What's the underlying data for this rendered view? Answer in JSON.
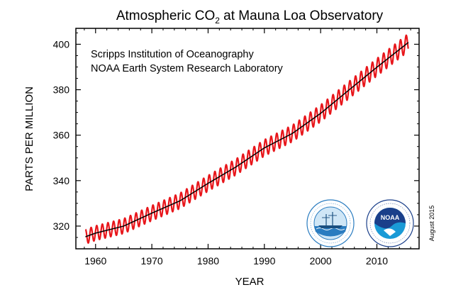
{
  "chart_data": {
    "type": "line",
    "title_main": "Atmospheric CO",
    "title_sub": "2",
    "title_tail": " at Mauna Loa Observatory",
    "annotations": [
      "Scripps Institution of Oceanography",
      "NOAA Earth System Research Laboratory"
    ],
    "xlabel": "YEAR",
    "ylabel": "PARTS PER MILLION",
    "date_note": "August 2015",
    "xlim": [
      1956.5,
      2017.5
    ],
    "ylim": [
      310,
      407
    ],
    "x_ticks": [
      1960,
      1970,
      1980,
      1990,
      2000,
      2010
    ],
    "y_ticks": [
      320,
      340,
      360,
      380,
      400
    ],
    "grid": false,
    "colors": {
      "monthly": "#e8161b",
      "trend": "#000000"
    },
    "series": [
      {
        "style": "monthly",
        "seasonal_amplitude": 3.2,
        "x_range": [
          1958.2,
          2015.6
        ]
      },
      {
        "style": "trend",
        "x": [
          1958.2,
          1960,
          1965,
          1970,
          1975,
          1980,
          1985,
          1990,
          1995,
          2000,
          2005,
          2010,
          2015.6
        ],
        "values": [
          315.3,
          316.9,
          320.0,
          325.7,
          331.1,
          338.8,
          346.1,
          354.4,
          360.8,
          369.6,
          379.8,
          389.9,
          400.8
        ]
      }
    ]
  },
  "logos": {
    "left": {
      "icon": "ship-seal-icon",
      "ring_text": "SCRIPPS INSTITUTION OF OCEANOGRAPHY",
      "bottom_text": "UCSD"
    },
    "right": {
      "icon": "noaa-logo-icon",
      "ring_text": "NATIONAL OCEANIC AND ATMOSPHERIC ADMINISTRATION",
      "bottom_text": "U.S. DEPARTMENT OF COMMERCE",
      "center_text": "NOAA"
    }
  }
}
